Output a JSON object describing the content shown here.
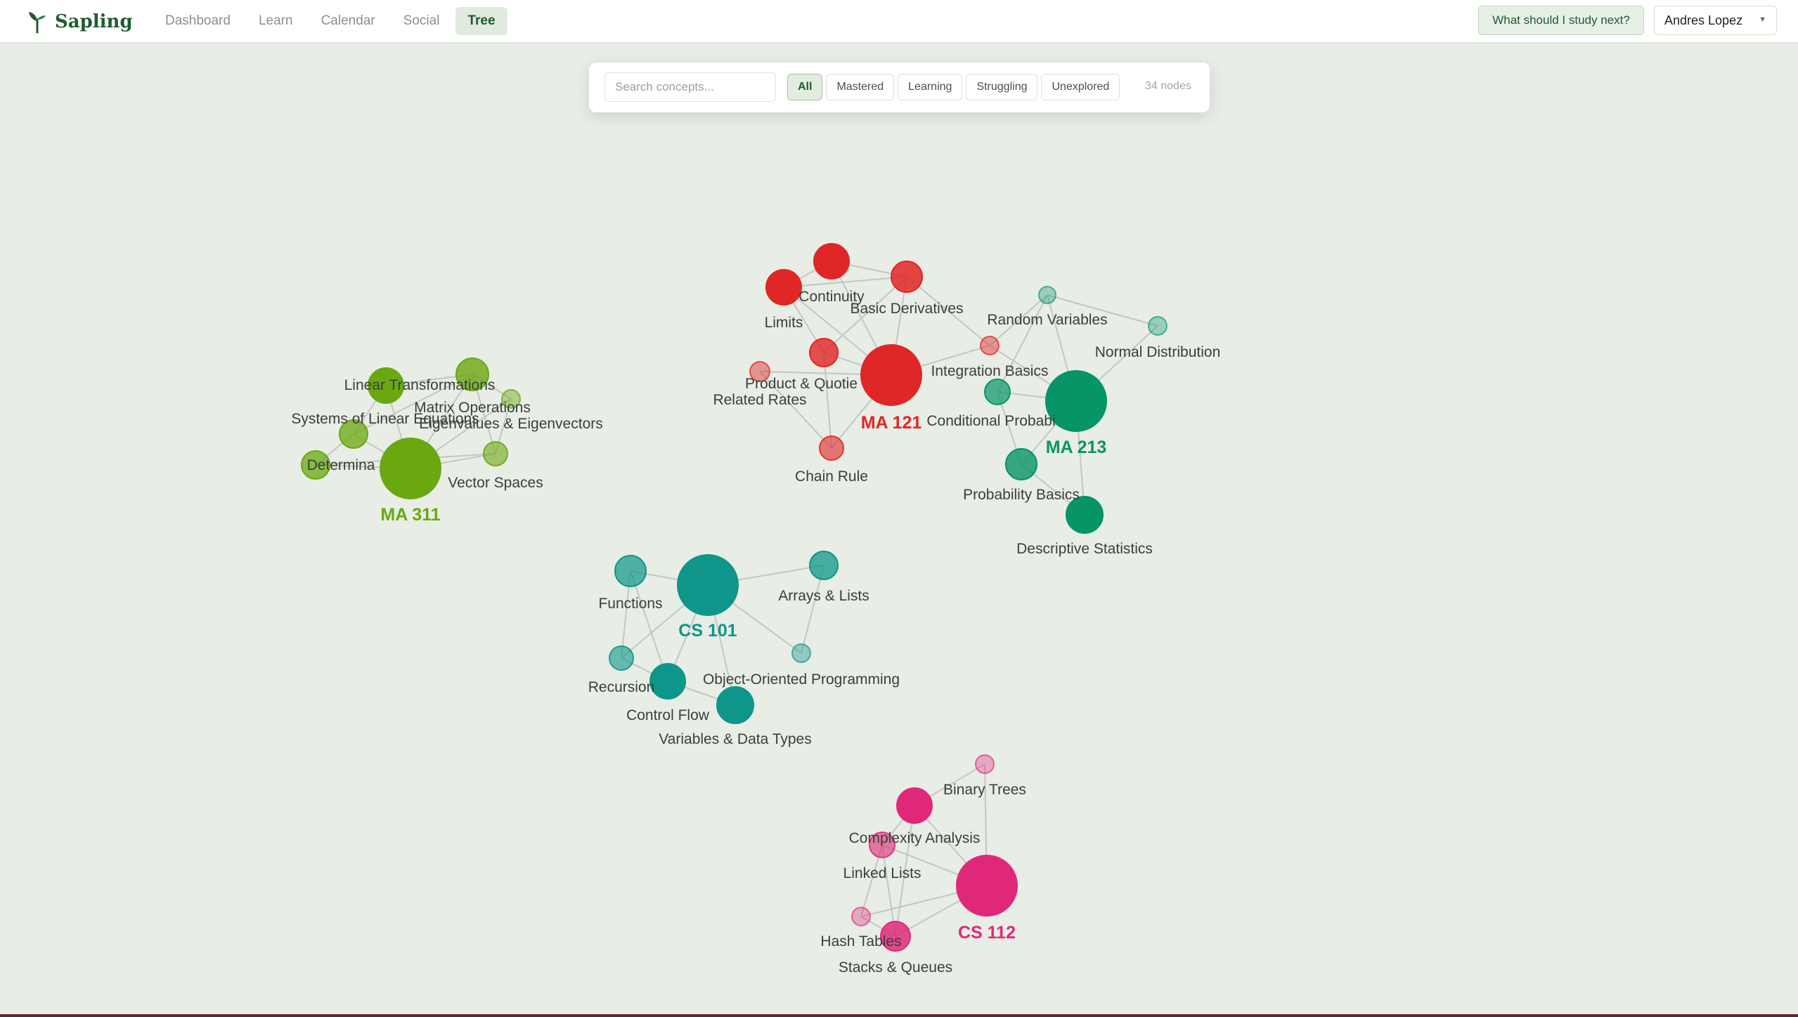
{
  "app": {
    "name": "Sapling",
    "logo_icon": "sprout-icon"
  },
  "nav": {
    "tabs": [
      {
        "label": "Dashboard",
        "active": false
      },
      {
        "label": "Learn",
        "active": false
      },
      {
        "label": "Calendar",
        "active": false
      },
      {
        "label": "Social",
        "active": false
      },
      {
        "label": "Tree",
        "active": true
      }
    ]
  },
  "header": {
    "study_button": "What should I study next?",
    "user_name": "Andres Lopez",
    "user_chevron_icon": "chevron-down-icon"
  },
  "filters": {
    "search_placeholder": "Search concepts...",
    "chips": [
      {
        "label": "All",
        "active": true
      },
      {
        "label": "Mastered",
        "active": false
      },
      {
        "label": "Learning",
        "active": false
      },
      {
        "label": "Struggling",
        "active": false
      },
      {
        "label": "Unexplored",
        "active": false
      }
    ],
    "node_count": "34 nodes"
  },
  "colors": {
    "MA 121": "#e02626",
    "MA 213": "#079466",
    "MA 311": "#6aa812",
    "CS 101": "#0e968a",
    "CS 112": "#e0287a",
    "edge": "#c3c7c1",
    "label": "#3b3f3b"
  },
  "graph": {
    "courses": [
      {
        "id": "MA 121",
        "label": "MA 121"
      },
      {
        "id": "MA 213",
        "label": "MA 213"
      },
      {
        "id": "MA 311",
        "label": "MA 311"
      },
      {
        "id": "CS 101",
        "label": "CS 101"
      },
      {
        "id": "CS 112",
        "label": "CS 112"
      }
    ],
    "concepts": [
      {
        "id": "continuity",
        "label": "Continuity",
        "course": "MA 121"
      },
      {
        "id": "limits",
        "label": "Limits",
        "course": "MA 121"
      },
      {
        "id": "basic-derivatives",
        "label": "Basic Derivatives",
        "course": "MA 121"
      },
      {
        "id": "product-quotient",
        "label": "Product & Quotie",
        "course": "MA 121"
      },
      {
        "id": "related-rates",
        "label": "Related Rates",
        "course": "MA 121"
      },
      {
        "id": "integration-basics",
        "label": "Integration Basics",
        "course": "MA 121"
      },
      {
        "id": "chain-rule",
        "label": "Chain Rule",
        "course": "MA 121"
      },
      {
        "id": "random-variables",
        "label": "Random Variables",
        "course": "MA 213"
      },
      {
        "id": "normal-distribution",
        "label": "Normal Distribution",
        "course": "MA 213"
      },
      {
        "id": "conditional-probability",
        "label": "Conditional Probabi",
        "course": "MA 213"
      },
      {
        "id": "probability-basics",
        "label": "Probability Basics",
        "course": "MA 213"
      },
      {
        "id": "descriptive-statistics",
        "label": "Descriptive Statistics",
        "course": "MA 213"
      },
      {
        "id": "linear-transformations",
        "label": "Linear Transformations",
        "course": "MA 311"
      },
      {
        "id": "matrix-operations",
        "label": "Matrix Operations",
        "course": "MA 311"
      },
      {
        "id": "systems-linear-equations",
        "label": "Systems of Linear Equations",
        "course": "MA 311"
      },
      {
        "id": "eigenvalues",
        "label": "Eigenvalues & Eigenvectors",
        "course": "MA 311"
      },
      {
        "id": "determinants",
        "label": "Determina",
        "course": "MA 311"
      },
      {
        "id": "vector-spaces",
        "label": "Vector Spaces",
        "course": "MA 311"
      },
      {
        "id": "functions",
        "label": "Functions",
        "course": "CS 101"
      },
      {
        "id": "arrays-lists",
        "label": "Arrays & Lists",
        "course": "CS 101"
      },
      {
        "id": "oop",
        "label": "Object-Oriented Programming",
        "course": "CS 101"
      },
      {
        "id": "recursion",
        "label": "Recursion",
        "course": "CS 101"
      },
      {
        "id": "control-flow",
        "label": "Control Flow",
        "course": "CS 101"
      },
      {
        "id": "variables",
        "label": "Variables & Data Types",
        "course": "CS 101"
      },
      {
        "id": "binary-trees",
        "label": "Binary Trees",
        "course": "CS 112"
      },
      {
        "id": "complexity",
        "label": "Complexity Analysis",
        "course": "CS 112"
      },
      {
        "id": "linked-lists",
        "label": "Linked Lists",
        "course": "CS 112"
      },
      {
        "id": "hash-tables",
        "label": "Hash Tables",
        "course": "CS 112"
      },
      {
        "id": "stacks-queues",
        "label": "Stacks & Queues",
        "course": "CS 112"
      }
    ]
  }
}
